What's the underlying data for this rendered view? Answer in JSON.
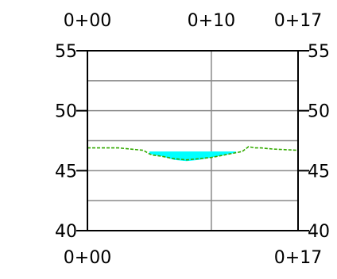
{
  "chart_data": {
    "type": "area",
    "title": "",
    "xlabel": "",
    "ylabel": "",
    "xlim": [
      0,
      17
    ],
    "ylim": [
      40,
      55
    ],
    "top_tick_labels": [
      "0+00",
      "0+10",
      "0+17"
    ],
    "bottom_tick_labels": [
      "0+00",
      "0+17"
    ],
    "left_tick_labels": [
      "55",
      "50",
      "45",
      "40"
    ],
    "right_tick_labels": [
      "55",
      "50",
      "45",
      "40"
    ],
    "y_ticks": [
      40,
      45,
      50,
      55
    ],
    "y_gridlines": [
      42.5,
      45,
      47.5,
      50,
      52.5
    ],
    "x_gridline": [
      10
    ],
    "grid": true,
    "series": [
      {
        "type": "line",
        "color": "#33aa00",
        "dash": true,
        "x": [
          0,
          2.5,
          4.5,
          5,
          5.3,
          6,
          7,
          8,
          9,
          10,
          11,
          12,
          12.5,
          13,
          13.5,
          14,
          15,
          17
        ],
        "y": [
          46.9,
          46.9,
          46.7,
          46.4,
          46.3,
          46.2,
          46.0,
          45.9,
          46.0,
          46.1,
          46.3,
          46.5,
          46.6,
          47.0,
          46.9,
          46.9,
          46.8,
          46.7
        ]
      },
      {
        "type": "fill",
        "color": "#00ffff",
        "surface_level": 46.6,
        "x": [
          5.0,
          6.0,
          7.0,
          8.0,
          9.0,
          10.0,
          11.0,
          12.0
        ],
        "y": [
          46.4,
          46.2,
          45.9,
          45.8,
          45.9,
          46.1,
          46.3,
          46.5
        ]
      }
    ]
  }
}
